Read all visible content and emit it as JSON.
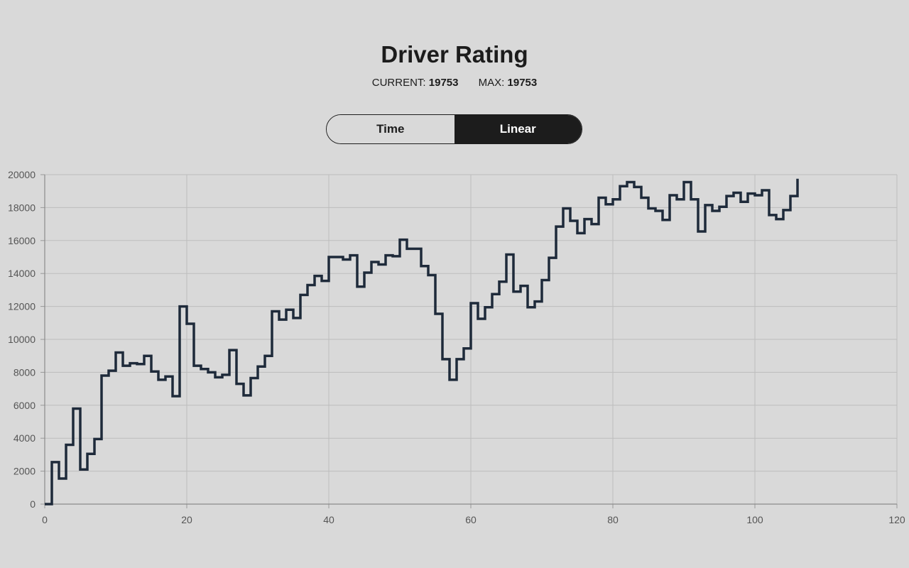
{
  "header": {
    "title": "Driver Rating",
    "current_label": "CURRENT:",
    "current_value": "19753",
    "max_label": "MAX:",
    "max_value": "19753"
  },
  "toggle": {
    "time_label": "Time",
    "linear_label": "Linear",
    "selected": "Linear"
  },
  "colors": {
    "background": "#d9d9d9",
    "line": "#1e2a3a",
    "grid": "#bdbdbd",
    "toggle_active_bg": "#1c1c1c"
  },
  "chart_data": {
    "type": "line",
    "step": true,
    "xlim": [
      0,
      120
    ],
    "ylim": [
      0,
      20000
    ],
    "x_ticks": [
      "0",
      "20",
      "40",
      "60",
      "80",
      "100",
      "120"
    ],
    "y_ticks": [
      "0",
      "2000",
      "4000",
      "6000",
      "8000",
      "10000",
      "12000",
      "14000",
      "16000",
      "18000",
      "20000"
    ],
    "grid": true,
    "series": [
      {
        "values": [
          0,
          2550,
          1550,
          3600,
          5800,
          2100,
          3050,
          3950,
          7800,
          8100,
          9200,
          8400,
          8550,
          8500,
          9000,
          8050,
          7550,
          7750,
          6550,
          12000,
          10950,
          8400,
          8200,
          8000,
          7700,
          7850,
          9350,
          7300,
          6600,
          7650,
          8350,
          9000,
          11700,
          11200,
          11800,
          11300,
          12700,
          13300,
          13850,
          13550,
          15000,
          15000,
          14850,
          15100,
          13200,
          14050,
          14700,
          14550,
          15100,
          15050,
          16050,
          15500,
          15500,
          14450,
          13900,
          11550,
          8800,
          7550,
          8800,
          9450,
          12200,
          11250,
          11950,
          12750,
          13500,
          15150,
          12900,
          13250,
          11950,
          12300,
          13600,
          14950,
          16850,
          17950,
          17200,
          16450,
          17300,
          17000,
          18600,
          18200,
          18500,
          19300,
          19550,
          19250,
          18600,
          17950,
          17800,
          17250,
          18750,
          18500,
          19550,
          18500,
          16550,
          18150,
          17800,
          18050,
          18700,
          18900,
          18350,
          18850,
          18750,
          19050,
          17550,
          17300,
          17850,
          18700,
          19753
        ]
      }
    ]
  }
}
